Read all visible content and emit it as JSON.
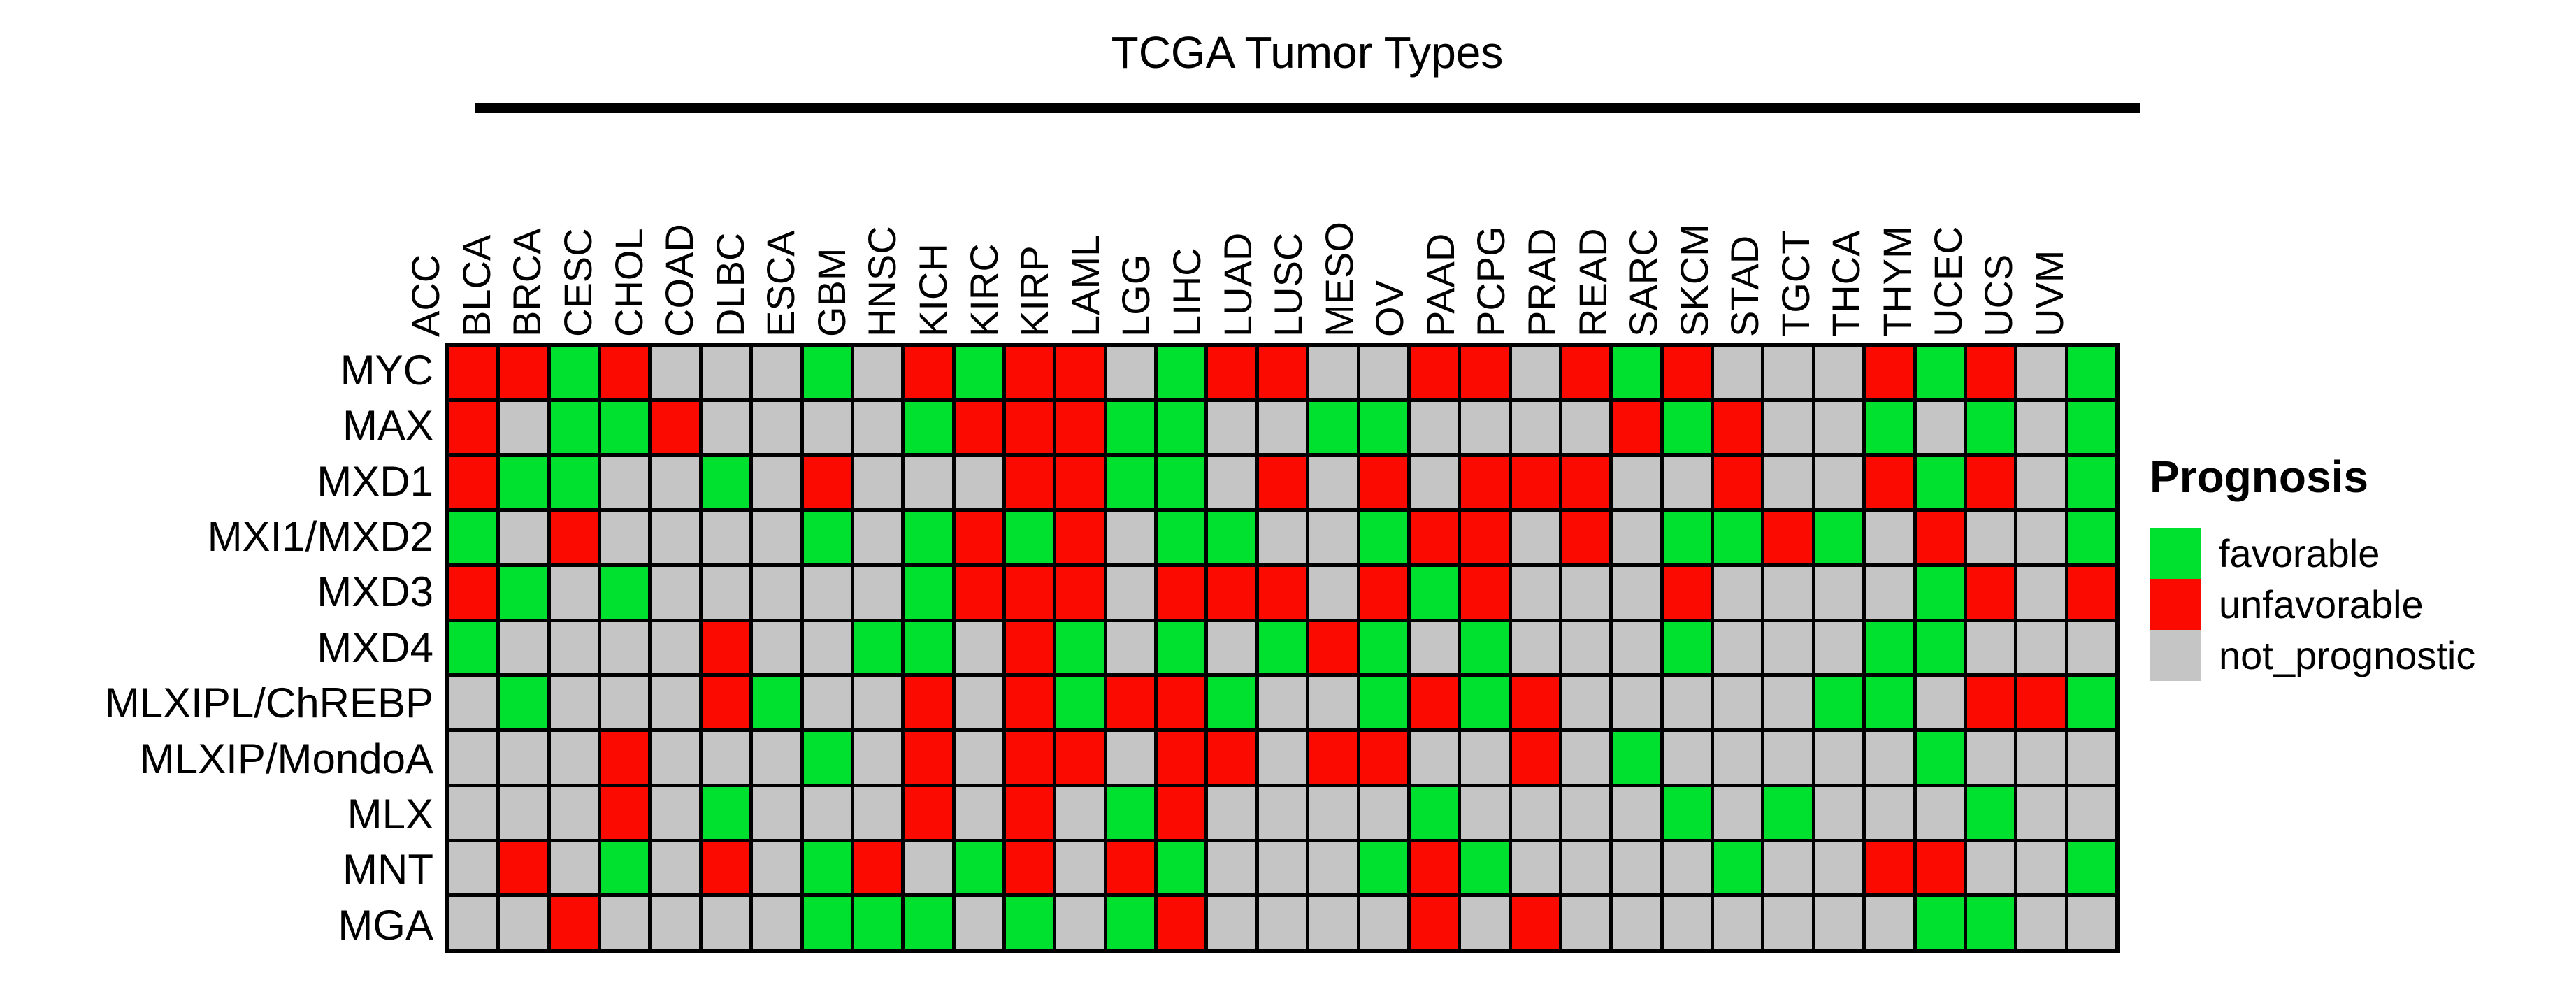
{
  "title": "TCGA Tumor Types",
  "legend": {
    "title": "Prognosis",
    "items": [
      {
        "key": "f",
        "label": "favorable",
        "color": "#00E02E"
      },
      {
        "key": "u",
        "label": "unfavorable",
        "color": "#FA0A00"
      },
      {
        "key": "n",
        "label": "not_prognostic",
        "color": "#C5C5C5"
      }
    ]
  },
  "colors": {
    "favorable": "#00E02E",
    "unfavorable": "#FA0A00",
    "not_prognostic": "#C5C5C5",
    "grid_line": "#000000",
    "background": "#FFFFFF"
  },
  "chart_data": {
    "type": "heatmap",
    "title": "TCGA Tumor Types",
    "x_axis_label": "TCGA Tumor Types",
    "legend_title": "Prognosis",
    "value_meanings": {
      "f": "favorable",
      "u": "unfavorable",
      "n": "not_prognostic"
    },
    "columns": [
      "ACC",
      "BLCA",
      "BRCA",
      "CESC",
      "CHOL",
      "COAD",
      "DLBC",
      "ESCA",
      "GBM",
      "HNSC",
      "KICH",
      "KIRC",
      "KIRP",
      "LAML",
      "LGG",
      "LIHC",
      "LUAD",
      "LUSC",
      "MESO",
      "OV",
      "PAAD",
      "PCPG",
      "PRAD",
      "READ",
      "SARC",
      "SKCM",
      "STAD",
      "TGCT",
      "THCA",
      "THYM",
      "UCEC",
      "UCS",
      "UVM"
    ],
    "rows": [
      "MYC",
      "MAX",
      "MXD1",
      "MXI1/MXD2",
      "MXD3",
      "MXD4",
      "MLXIPL/ChREBP",
      "MLXIP/MondoA",
      "MLX",
      "MNT",
      "MGA"
    ],
    "matrix": [
      [
        "u",
        "u",
        "f",
        "u",
        "n",
        "n",
        "n",
        "f",
        "n",
        "u",
        "f",
        "u",
        "u",
        "n",
        "f",
        "u",
        "u",
        "n",
        "n",
        "u",
        "u",
        "n",
        "u",
        "f",
        "u",
        "n",
        "n",
        "n",
        "u",
        "f",
        "u",
        "n",
        "f"
      ],
      [
        "u",
        "n",
        "f",
        "f",
        "u",
        "n",
        "n",
        "n",
        "n",
        "f",
        "u",
        "u",
        "u",
        "f",
        "f",
        "n",
        "n",
        "f",
        "f",
        "n",
        "n",
        "n",
        "n",
        "u",
        "f",
        "u",
        "n",
        "n",
        "f",
        "n",
        "f",
        "n",
        "f"
      ],
      [
        "u",
        "f",
        "f",
        "n",
        "n",
        "f",
        "n",
        "u",
        "n",
        "n",
        "n",
        "u",
        "u",
        "f",
        "f",
        "n",
        "u",
        "n",
        "u",
        "n",
        "u",
        "u",
        "u",
        "n",
        "n",
        "u",
        "n",
        "n",
        "u",
        "f",
        "u",
        "n",
        "f"
      ],
      [
        "f",
        "n",
        "u",
        "n",
        "n",
        "n",
        "n",
        "f",
        "n",
        "f",
        "u",
        "f",
        "u",
        "n",
        "f",
        "f",
        "n",
        "n",
        "f",
        "u",
        "u",
        "n",
        "u",
        "n",
        "f",
        "f",
        "u",
        "f",
        "n",
        "u",
        "n",
        "n",
        "f"
      ],
      [
        "u",
        "f",
        "n",
        "f",
        "n",
        "n",
        "n",
        "n",
        "n",
        "f",
        "u",
        "u",
        "u",
        "n",
        "u",
        "u",
        "u",
        "n",
        "u",
        "f",
        "u",
        "n",
        "n",
        "n",
        "u",
        "n",
        "n",
        "n",
        "n",
        "f",
        "u",
        "n",
        "u"
      ],
      [
        "f",
        "n",
        "n",
        "n",
        "n",
        "u",
        "n",
        "n",
        "f",
        "f",
        "n",
        "u",
        "f",
        "n",
        "f",
        "n",
        "f",
        "u",
        "f",
        "n",
        "f",
        "n",
        "n",
        "n",
        "f",
        "n",
        "n",
        "n",
        "f",
        "f",
        "n",
        "n",
        "n"
      ],
      [
        "n",
        "f",
        "n",
        "n",
        "n",
        "u",
        "f",
        "n",
        "n",
        "u",
        "n",
        "u",
        "f",
        "u",
        "u",
        "f",
        "n",
        "n",
        "f",
        "u",
        "f",
        "u",
        "n",
        "n",
        "n",
        "n",
        "n",
        "f",
        "f",
        "n",
        "u",
        "u",
        "f"
      ],
      [
        "n",
        "n",
        "n",
        "u",
        "n",
        "n",
        "n",
        "f",
        "n",
        "u",
        "n",
        "u",
        "u",
        "n",
        "u",
        "u",
        "n",
        "u",
        "u",
        "n",
        "n",
        "u",
        "n",
        "f",
        "n",
        "n",
        "n",
        "n",
        "n",
        "f",
        "n",
        "n",
        "n"
      ],
      [
        "n",
        "n",
        "n",
        "u",
        "n",
        "f",
        "n",
        "n",
        "n",
        "u",
        "n",
        "u",
        "n",
        "f",
        "u",
        "n",
        "n",
        "n",
        "n",
        "f",
        "n",
        "n",
        "n",
        "n",
        "f",
        "n",
        "f",
        "n",
        "n",
        "n",
        "f",
        "n",
        "n"
      ],
      [
        "n",
        "u",
        "n",
        "f",
        "n",
        "u",
        "n",
        "f",
        "u",
        "n",
        "f",
        "u",
        "n",
        "u",
        "f",
        "n",
        "n",
        "n",
        "f",
        "u",
        "f",
        "n",
        "n",
        "n",
        "n",
        "f",
        "n",
        "n",
        "u",
        "u",
        "n",
        "n",
        "f"
      ],
      [
        "n",
        "n",
        "u",
        "n",
        "n",
        "n",
        "n",
        "f",
        "f",
        "f",
        "n",
        "f",
        "n",
        "f",
        "u",
        "n",
        "n",
        "n",
        "n",
        "u",
        "n",
        "u",
        "n",
        "n",
        "n",
        "n",
        "n",
        "n",
        "n",
        "f",
        "f",
        "n",
        "n"
      ]
    ]
  }
}
